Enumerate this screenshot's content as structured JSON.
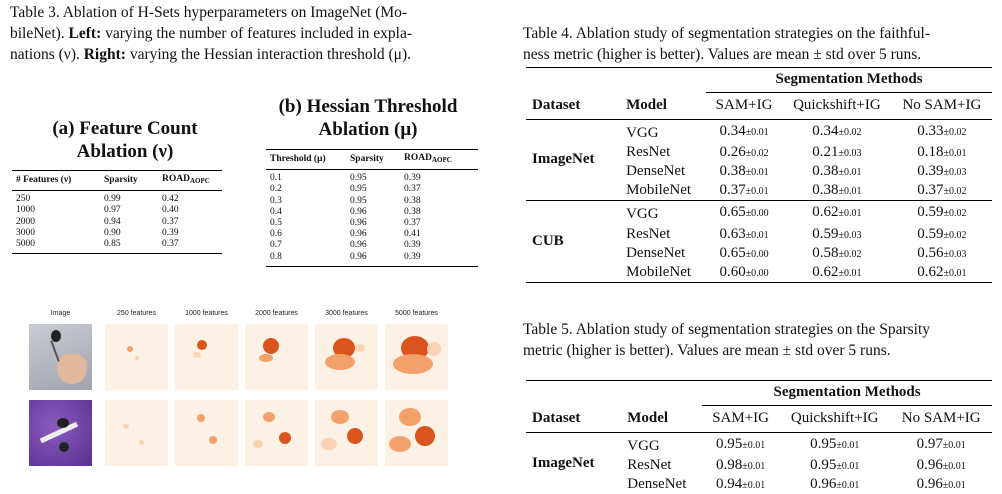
{
  "table3": {
    "caption_label": "Table 3.",
    "caption_text_1": " Ablation of H-Sets hyperparameters on ImageNet (Mo-",
    "caption_text_2": "bileNet). ",
    "left_bold": "Left:",
    "left_text": " varying the number of features included in expla-",
    "caption_text_3": "nations (ν). ",
    "right_bold": "Right:",
    "right_text": " varying the Hessian interaction threshold (μ).",
    "a_title_1": "(a) Feature Count",
    "a_title_2": "Ablation (ν)",
    "a_headers": [
      "# Features (ν)",
      "Sparsity",
      "ROAD"
    ],
    "road_sub": "AOPC",
    "a_rows": [
      [
        "250",
        "0.99",
        "0.42"
      ],
      [
        "1000",
        "0.97",
        "0.40"
      ],
      [
        "2000",
        "0.94",
        "0.37"
      ],
      [
        "3000",
        "0.90",
        "0.39"
      ],
      [
        "5000",
        "0.85",
        "0.37"
      ]
    ],
    "b_title_1": "(b) Hessian Threshold",
    "b_title_2": "Ablation (μ)",
    "b_headers": [
      "Threshold (μ)",
      "Sparsity",
      "ROAD"
    ],
    "b_rows": [
      [
        "0.1",
        "0.95",
        "0.39"
      ],
      [
        "0.2",
        "0.95",
        "0.37"
      ],
      [
        "0.3",
        "0.95",
        "0.38"
      ],
      [
        "0.4",
        "0.96",
        "0.38"
      ],
      [
        "0.5",
        "0.96",
        "0.37"
      ],
      [
        "0.6",
        "0.96",
        "0.41"
      ],
      [
        "0.7",
        "0.96",
        "0.39"
      ],
      [
        "0.8",
        "0.96",
        "0.39"
      ]
    ]
  },
  "heatmaps": {
    "column_labels": [
      "Image",
      "250 features",
      "1000 features",
      "2000 features",
      "3000 features",
      "5000 features"
    ],
    "colors": {
      "background": "#fdf1e6",
      "low": "#fbd3b4",
      "mid": "#f3a06a",
      "high": "#d9551d"
    }
  },
  "table4": {
    "caption_1": "Table 4.  Ablation study of segmentation strategies on the faithful-",
    "caption_2": "ness metric (higher is better). Values are mean ± std over 5 runs.",
    "group_header": "Segmentation Methods",
    "col_headers": [
      "Dataset",
      "Model",
      "SAM+IG",
      "Quickshift+IG",
      "No SAM+IG"
    ],
    "groups": [
      {
        "dataset": "ImageNet",
        "rows": [
          {
            "model": "VGG",
            "vals": [
              [
                "0.34",
                "±0.01"
              ],
              [
                "0.34",
                "±0.02"
              ],
              [
                "0.33",
                "±0.02"
              ]
            ]
          },
          {
            "model": "ResNet",
            "vals": [
              [
                "0.26",
                "±0.02"
              ],
              [
                "0.21",
                "±0.03"
              ],
              [
                "0.18",
                "±0.01"
              ]
            ]
          },
          {
            "model": "DenseNet",
            "vals": [
              [
                "0.38",
                "±0.01"
              ],
              [
                "0.38",
                "±0.01"
              ],
              [
                "0.39",
                "±0.03"
              ]
            ]
          },
          {
            "model": "MobileNet",
            "vals": [
              [
                "0.37",
                "±0.01"
              ],
              [
                "0.38",
                "±0.01"
              ],
              [
                "0.37",
                "±0.02"
              ]
            ]
          }
        ]
      },
      {
        "dataset": "CUB",
        "rows": [
          {
            "model": "VGG",
            "vals": [
              [
                "0.65",
                "±0.00"
              ],
              [
                "0.62",
                "±0.01"
              ],
              [
                "0.59",
                "±0.02"
              ]
            ]
          },
          {
            "model": "ResNet",
            "vals": [
              [
                "0.63",
                "±0.01"
              ],
              [
                "0.59",
                "±0.03"
              ],
              [
                "0.59",
                "±0.02"
              ]
            ]
          },
          {
            "model": "DenseNet",
            "vals": [
              [
                "0.65",
                "±0.00"
              ],
              [
                "0.58",
                "±0.02"
              ],
              [
                "0.56",
                "±0.03"
              ]
            ]
          },
          {
            "model": "MobileNet",
            "vals": [
              [
                "0.60",
                "±0.00"
              ],
              [
                "0.62",
                "±0.01"
              ],
              [
                "0.62",
                "±0.01"
              ]
            ]
          }
        ]
      }
    ]
  },
  "table5": {
    "caption_1": "Table 5.  Ablation study of segmentation strategies on the Sparsity",
    "caption_2": "metric (higher is better). Values are mean ± std over 5 runs.",
    "group_header": "Segmentation Methods",
    "col_headers": [
      "Dataset",
      "Model",
      "SAM+IG",
      "Quickshift+IG",
      "No SAM+IG"
    ],
    "groups": [
      {
        "dataset": "ImageNet",
        "rows": [
          {
            "model": "VGG",
            "vals": [
              [
                "0.95",
                "±0.01"
              ],
              [
                "0.95",
                "±0.01"
              ],
              [
                "0.97",
                "±0.01"
              ]
            ]
          },
          {
            "model": "ResNet",
            "vals": [
              [
                "0.98",
                "±0.01"
              ],
              [
                "0.95",
                "±0.01"
              ],
              [
                "0.96",
                "±0.01"
              ]
            ]
          },
          {
            "model": "DenseNet",
            "vals": [
              [
                "0.94",
                "±0.01"
              ],
              [
                "0.96",
                "±0.01"
              ],
              [
                "0.96",
                "±0.01"
              ]
            ]
          }
        ]
      }
    ]
  }
}
